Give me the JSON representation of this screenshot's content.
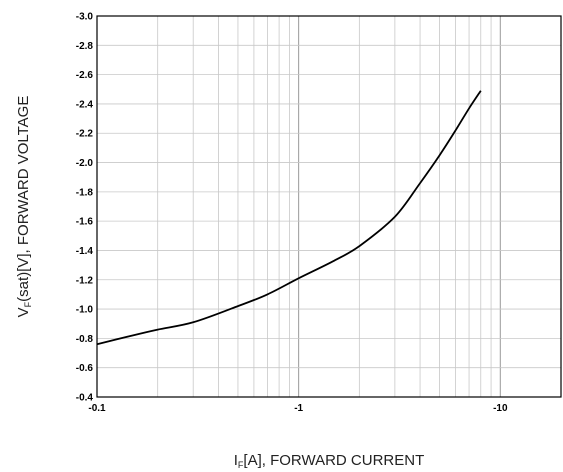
{
  "chart_data": {
    "type": "line",
    "x_scale": "log",
    "xlim": [
      -0.1,
      -20
    ],
    "ylim": [
      -0.4,
      -3.0
    ],
    "grid": true,
    "x_ticks": [
      {
        "value": -0.1,
        "label": "-0.1"
      },
      {
        "value": -1,
        "label": "-1"
      },
      {
        "value": -10,
        "label": "-10"
      }
    ],
    "y_ticks": [
      {
        "value": -3.0,
        "label": "-3.0"
      },
      {
        "value": -2.8,
        "label": "-2.8"
      },
      {
        "value": -2.6,
        "label": "-2.6"
      },
      {
        "value": -2.4,
        "label": "-2.4"
      },
      {
        "value": -2.2,
        "label": "-2.2"
      },
      {
        "value": -2.0,
        "label": "-2.0"
      },
      {
        "value": -1.8,
        "label": "-1.8"
      },
      {
        "value": -1.6,
        "label": "-1.6"
      },
      {
        "value": -1.4,
        "label": "-1.4"
      },
      {
        "value": -1.2,
        "label": "-1.2"
      },
      {
        "value": -1.0,
        "label": "-1.0"
      },
      {
        "value": -0.8,
        "label": "-0.8"
      },
      {
        "value": -0.6,
        "label": "-0.6"
      },
      {
        "value": -0.4,
        "label": "-0.4"
      }
    ],
    "xlabel": {
      "main": "I",
      "sub": "F",
      "rest": "[A], FORWARD CURRENT"
    },
    "ylabel": {
      "main": "V",
      "sub": "F",
      "rest": "(sat)[V], FORWARD VOLTAGE"
    },
    "series": [
      {
        "color": "#000000",
        "points": [
          {
            "x": -0.1,
            "y": -0.76
          },
          {
            "x": -0.15,
            "y": -0.82
          },
          {
            "x": -0.2,
            "y": -0.86
          },
          {
            "x": -0.3,
            "y": -0.91
          },
          {
            "x": -0.5,
            "y": -1.02
          },
          {
            "x": -0.7,
            "y": -1.1
          },
          {
            "x": -1.0,
            "y": -1.21
          },
          {
            "x": -1.5,
            "y": -1.33
          },
          {
            "x": -2.0,
            "y": -1.43
          },
          {
            "x": -3.0,
            "y": -1.63
          },
          {
            "x": -4.0,
            "y": -1.86
          },
          {
            "x": -5.0,
            "y": -2.05
          },
          {
            "x": -6.0,
            "y": -2.22
          },
          {
            "x": -7.0,
            "y": -2.37
          },
          {
            "x": -8.0,
            "y": -2.49
          }
        ]
      }
    ]
  }
}
